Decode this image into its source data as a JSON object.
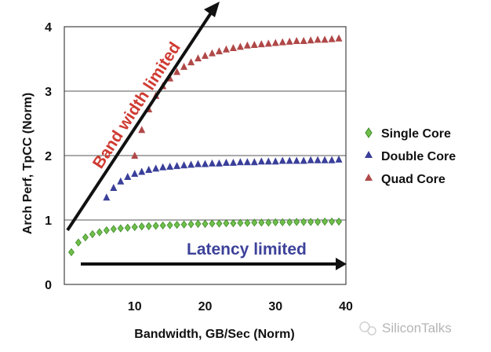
{
  "chart_data": {
    "type": "scatter",
    "xlabel": "Bandwidth, GB/Sec (Norm)",
    "ylabel": "Arch Perf, TpCC (Norm)",
    "xlim": [
      0,
      40
    ],
    "ylim": [
      0,
      4
    ],
    "x_ticks": [
      10,
      20,
      30,
      40
    ],
    "y_ticks": [
      0,
      1,
      2,
      3,
      4
    ],
    "grid": "horizontal",
    "legend_position": "right",
    "series": [
      {
        "name": "Single Core",
        "marker": "diamond",
        "color": "#6fbf4a",
        "x": [
          1,
          2,
          3,
          4,
          5,
          6,
          7,
          8,
          9,
          10,
          11,
          12,
          13,
          14,
          15,
          16,
          17,
          18,
          19,
          20,
          21,
          22,
          23,
          24,
          25,
          26,
          27,
          28,
          29,
          30,
          31,
          32,
          33,
          34,
          35,
          36,
          37,
          38,
          39
        ],
        "y": [
          0.5,
          0.65,
          0.73,
          0.78,
          0.81,
          0.84,
          0.86,
          0.87,
          0.88,
          0.89,
          0.9,
          0.905,
          0.91,
          0.915,
          0.92,
          0.925,
          0.93,
          0.935,
          0.94,
          0.94,
          0.945,
          0.945,
          0.95,
          0.95,
          0.955,
          0.955,
          0.96,
          0.96,
          0.96,
          0.965,
          0.965,
          0.965,
          0.97,
          0.97,
          0.97,
          0.97,
          0.975,
          0.975,
          0.975
        ]
      },
      {
        "name": "Double Core",
        "marker": "triangle",
        "color": "#3a3f9a",
        "x": [
          6,
          7,
          8,
          9,
          10,
          11,
          12,
          13,
          14,
          15,
          16,
          17,
          18,
          19,
          20,
          21,
          22,
          23,
          24,
          25,
          26,
          27,
          28,
          29,
          30,
          31,
          32,
          33,
          34,
          35,
          36,
          37,
          38,
          39
        ],
        "y": [
          1.35,
          1.5,
          1.6,
          1.67,
          1.72,
          1.75,
          1.78,
          1.8,
          1.82,
          1.83,
          1.84,
          1.85,
          1.86,
          1.87,
          1.87,
          1.88,
          1.88,
          1.89,
          1.89,
          1.9,
          1.9,
          1.9,
          1.91,
          1.91,
          1.91,
          1.92,
          1.92,
          1.92,
          1.92,
          1.93,
          1.93,
          1.93,
          1.93,
          1.94
        ]
      },
      {
        "name": "Quad Core",
        "marker": "triangle",
        "color": "#b04848",
        "x": [
          10,
          11,
          12,
          13,
          14,
          15,
          16,
          17,
          18,
          19,
          20,
          21,
          22,
          23,
          24,
          25,
          26,
          27,
          28,
          29,
          30,
          31,
          32,
          33,
          34,
          35,
          36,
          37,
          38,
          39
        ],
        "y": [
          2.0,
          2.4,
          2.72,
          2.93,
          3.08,
          3.2,
          3.3,
          3.38,
          3.45,
          3.51,
          3.55,
          3.59,
          3.62,
          3.65,
          3.67,
          3.69,
          3.71,
          3.72,
          3.73,
          3.74,
          3.75,
          3.76,
          3.77,
          3.78,
          3.78,
          3.79,
          3.8,
          3.8,
          3.81,
          3.82
        ]
      }
    ],
    "annotations": {
      "bandwidth": {
        "text": "Band width limited",
        "color": "#cf3b32"
      },
      "latency": {
        "text": "Latency limited",
        "color": "#3d4299"
      }
    }
  },
  "watermark": {
    "text": "SiliconTalks"
  }
}
